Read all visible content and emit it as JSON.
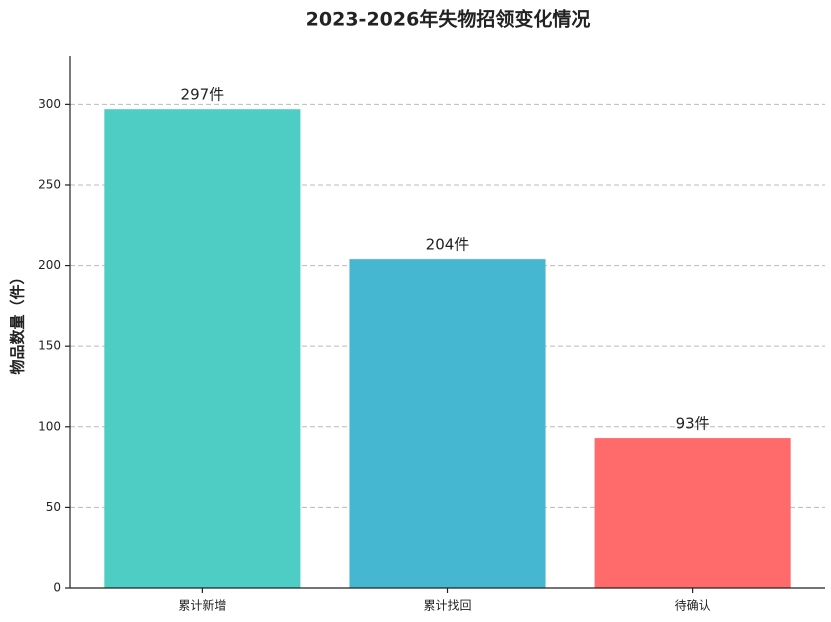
{
  "chart_data": {
    "type": "bar",
    "title": "2023-2026年失物招领变化情况",
    "y_label": "物品数量（件）",
    "categories": [
      "累计新增",
      "累计找回",
      "待确认"
    ],
    "values": [
      297,
      204,
      93
    ],
    "value_labels": [
      "297件",
      "204件",
      "93件"
    ],
    "colors": [
      "#4ECDC4",
      "#45B7D1",
      "#FF6B6B"
    ],
    "ylim": [
      0,
      330
    ],
    "yticks": [
      0,
      50,
      100,
      150,
      200,
      250,
      300
    ],
    "grid": true
  }
}
